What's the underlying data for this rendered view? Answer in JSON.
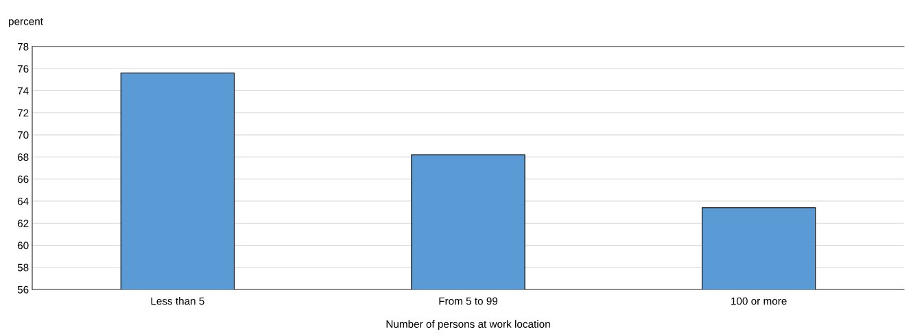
{
  "chart_data": {
    "type": "bar",
    "ylabel": "percent",
    "xlabel": "Number of persons at work location",
    "categories": [
      "Less than 5",
      "From 5 to 99",
      "100 or more"
    ],
    "values": [
      75.6,
      68.2,
      63.4
    ],
    "color": "#5b9bd5",
    "ylim": [
      56,
      78
    ],
    "yticks": [
      56,
      58,
      60,
      62,
      64,
      66,
      68,
      70,
      72,
      74,
      76,
      78
    ],
    "grid": "y",
    "legend": false
  }
}
